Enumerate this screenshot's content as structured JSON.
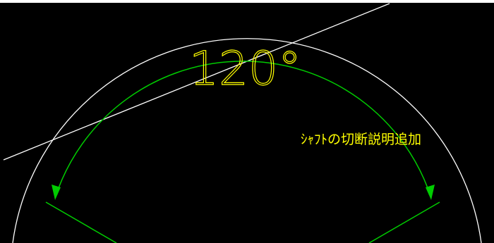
{
  "drawing": {
    "angle_dimension_text": "120°",
    "annotation_text": "ｼｬﾌﾄの切断説明追加"
  },
  "colors": {
    "background": "#000000",
    "dimension": "#00cc00",
    "text": "#ffff00",
    "geometry": "#ffffff"
  }
}
